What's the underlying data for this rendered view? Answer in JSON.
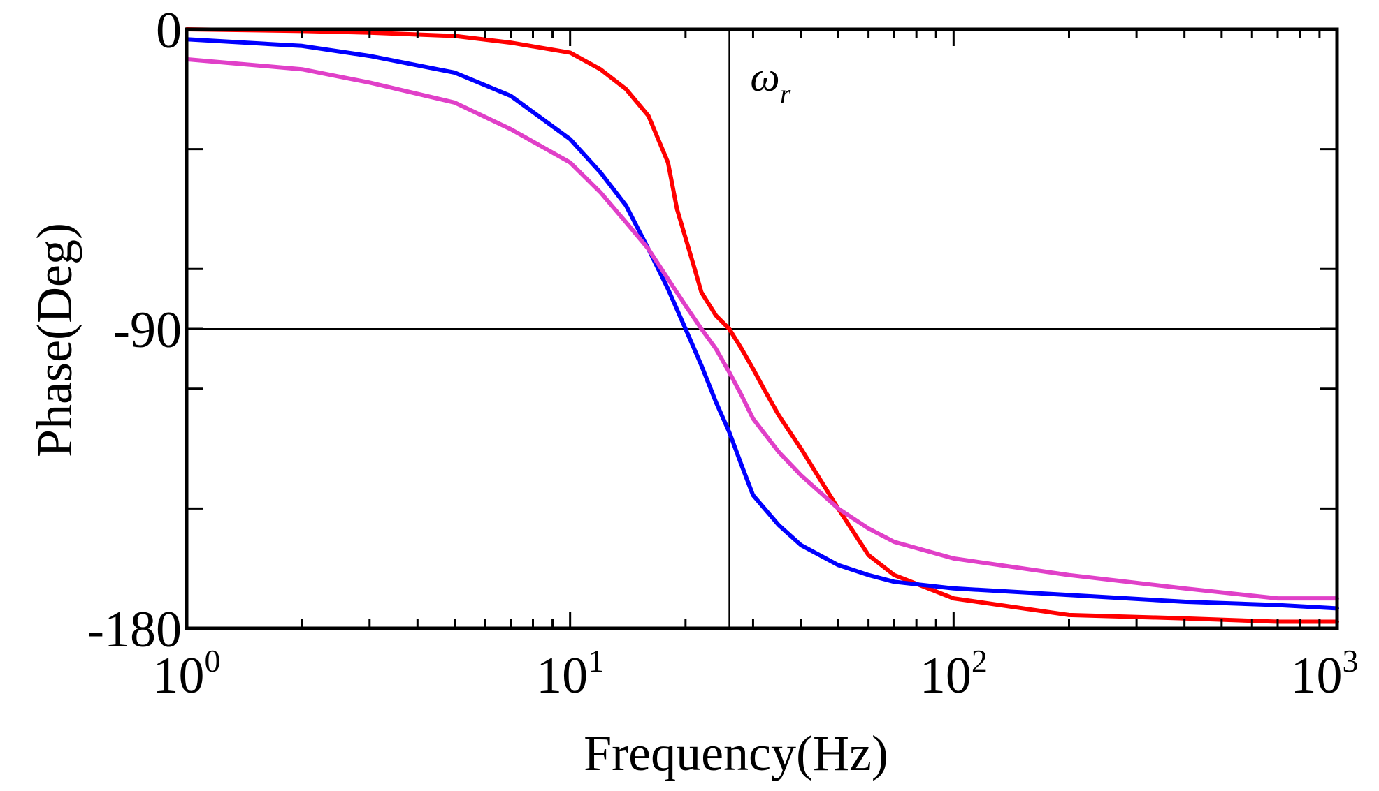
{
  "chart_data": {
    "type": "line",
    "title": "",
    "xlabel": "Frequency(Hz)",
    "ylabel": "Phase(Deg)",
    "xscale": "log",
    "xlim": [
      1,
      1000
    ],
    "ylim": [
      -180,
      0
    ],
    "x_ticks": [
      {
        "base": "10",
        "exp": "0",
        "value": 1
      },
      {
        "base": "10",
        "exp": "1",
        "value": 10
      },
      {
        "base": "10",
        "exp": "2",
        "value": 100
      },
      {
        "base": "10",
        "exp": "3",
        "value": 1000
      }
    ],
    "y_ticks": [
      {
        "label": "0",
        "value": 0
      },
      {
        "label": "-90",
        "value": -90
      },
      {
        "label": "-180",
        "value": -180
      }
    ],
    "y_minor_ticks": [
      -36,
      -72,
      -108,
      -144
    ],
    "reference_lines": {
      "resonance_frequency": 26,
      "phase": -90,
      "label_symbol": "ω",
      "label_subscript": "r"
    },
    "legend": "none",
    "series": [
      {
        "name": "red",
        "color": "#ff0000",
        "x": [
          1,
          2,
          3,
          5,
          7,
          10,
          12,
          14,
          16,
          18,
          19,
          21,
          22,
          24,
          26,
          28,
          30,
          32,
          35,
          40,
          50,
          60,
          70,
          100,
          200,
          400,
          700,
          1000
        ],
        "y": [
          0,
          -0.5,
          -1,
          -2,
          -4,
          -7,
          -12,
          -18,
          -26,
          -40,
          -54,
          -71,
          -79,
          -86,
          -90,
          -96,
          -102,
          -108,
          -116,
          -126,
          -144,
          -158,
          -164,
          -171,
          -176,
          -177,
          -178,
          -178
        ]
      },
      {
        "name": "blue",
        "color": "#0000ff",
        "x": [
          1,
          2,
          3,
          5,
          7,
          10,
          12,
          14,
          16,
          18,
          20,
          22,
          24,
          26,
          28,
          30,
          35,
          40,
          50,
          60,
          70,
          100,
          200,
          400,
          700,
          1000
        ],
        "y": [
          -3,
          -5,
          -8,
          -13,
          -20,
          -33,
          -43,
          -53,
          -66,
          -78,
          -90,
          -101,
          -112,
          -121,
          -131,
          -140,
          -149,
          -155,
          -161,
          -164,
          -166,
          -168,
          -170,
          -172,
          -173,
          -174
        ]
      },
      {
        "name": "magenta",
        "color": "#e040c8",
        "x": [
          1,
          2,
          3,
          5,
          7,
          10,
          12,
          14,
          16,
          18,
          20,
          22,
          24,
          26,
          28,
          30,
          35,
          40,
          50,
          60,
          70,
          100,
          200,
          400,
          700,
          1000
        ],
        "y": [
          -9,
          -12,
          -16,
          -22,
          -30,
          -40,
          -49,
          -58,
          -66,
          -75,
          -83,
          -90,
          -96,
          -103,
          -110,
          -117,
          -127,
          -134,
          -144,
          -150,
          -154,
          -159,
          -164,
          -168,
          -171,
          -171
        ]
      }
    ]
  }
}
